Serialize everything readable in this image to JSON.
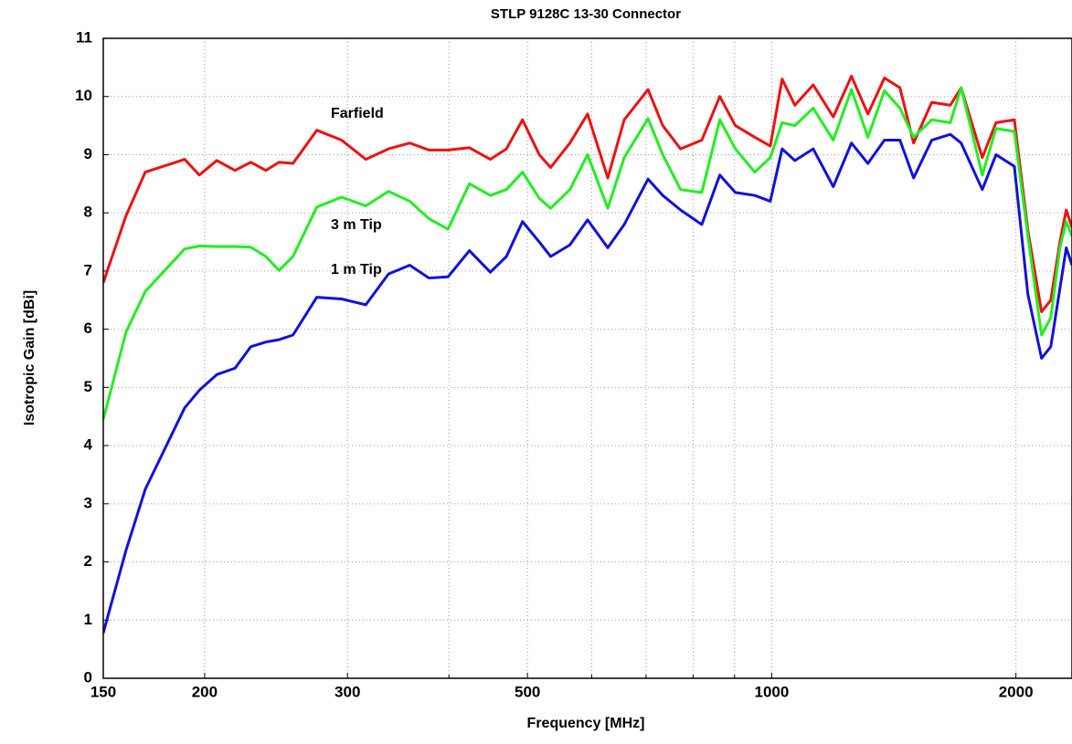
{
  "chart_data": {
    "type": "line",
    "title": "STLP 9128C 13-30 Connector",
    "x_label": "Frequency [MHz]",
    "y_label": "Isotropic Gain [dBi]",
    "xscale": "log",
    "grid": true,
    "xlim": [
      150,
      2345
    ],
    "xticks": [
      150,
      200,
      300,
      500,
      1000,
      2000
    ],
    "xminor": [
      400,
      600,
      700,
      800,
      900
    ],
    "ylim": [
      0,
      11
    ],
    "yticks": [
      0,
      1,
      2,
      3,
      4,
      5,
      6,
      7,
      8,
      9,
      10,
      11
    ],
    "x": [
      150,
      160,
      169,
      189,
      197,
      207,
      218,
      228,
      238,
      247,
      257,
      275,
      295,
      316,
      337,
      358,
      378,
      399,
      424,
      450,
      471,
      493,
      517,
      534,
      564,
      593,
      628,
      658,
      704,
      734,
      772,
      820,
      863,
      902,
      953,
      996,
      1030,
      1068,
      1125,
      1191,
      1254,
      1314,
      1377,
      1439,
      1496,
      1575,
      1660,
      1712,
      1818,
      1890,
      1991,
      2069,
      2151,
      2208,
      2266,
      2307,
      2345
    ],
    "series": [
      {
        "name": "Farfield",
        "color": "#ee1111",
        "values": [
          6.8,
          7.95,
          8.7,
          8.92,
          8.65,
          8.9,
          8.73,
          8.87,
          8.73,
          8.87,
          8.85,
          9.42,
          9.25,
          8.92,
          9.1,
          9.2,
          9.08,
          9.08,
          9.12,
          8.92,
          9.1,
          9.6,
          9.0,
          8.78,
          9.2,
          9.7,
          8.6,
          9.6,
          10.12,
          9.5,
          9.1,
          9.25,
          10.0,
          9.5,
          9.3,
          9.15,
          10.3,
          9.85,
          10.2,
          9.65,
          10.35,
          9.7,
          10.32,
          10.15,
          9.2,
          9.9,
          9.85,
          10.15,
          8.95,
          9.55,
          9.6,
          7.7,
          6.3,
          6.5,
          7.5,
          8.05,
          7.75
        ]
      },
      {
        "name": "3 m Tip",
        "color": "#22ee22",
        "values": [
          4.45,
          5.95,
          6.65,
          7.38,
          7.43,
          7.42,
          7.42,
          7.41,
          7.25,
          7.01,
          7.25,
          8.1,
          8.27,
          8.12,
          8.37,
          8.2,
          7.9,
          7.72,
          8.5,
          8.3,
          8.4,
          8.7,
          8.25,
          8.08,
          8.4,
          9.0,
          8.08,
          8.95,
          9.62,
          9.0,
          8.4,
          8.35,
          9.6,
          9.1,
          8.7,
          8.95,
          9.55,
          9.5,
          9.8,
          9.25,
          10.12,
          9.3,
          10.1,
          9.8,
          9.3,
          9.6,
          9.55,
          10.15,
          8.65,
          9.45,
          9.4,
          7.6,
          5.9,
          6.2,
          7.4,
          7.85,
          7.6
        ]
      },
      {
        "name": "1 m Tip",
        "color": "#1111dd",
        "values": [
          0.78,
          2.2,
          3.25,
          4.65,
          4.95,
          5.22,
          5.33,
          5.7,
          5.78,
          5.82,
          5.9,
          6.55,
          6.52,
          6.42,
          6.95,
          7.1,
          6.88,
          6.9,
          7.35,
          6.98,
          7.25,
          7.85,
          7.5,
          7.25,
          7.45,
          7.88,
          7.4,
          7.8,
          8.58,
          8.3,
          8.05,
          7.8,
          8.65,
          8.35,
          8.3,
          8.2,
          9.1,
          8.9,
          9.1,
          8.45,
          9.2,
          8.85,
          9.25,
          9.25,
          8.6,
          9.25,
          9.35,
          9.2,
          8.4,
          9.0,
          8.8,
          6.6,
          5.5,
          5.7,
          6.7,
          7.4,
          7.1
        ]
      }
    ]
  }
}
